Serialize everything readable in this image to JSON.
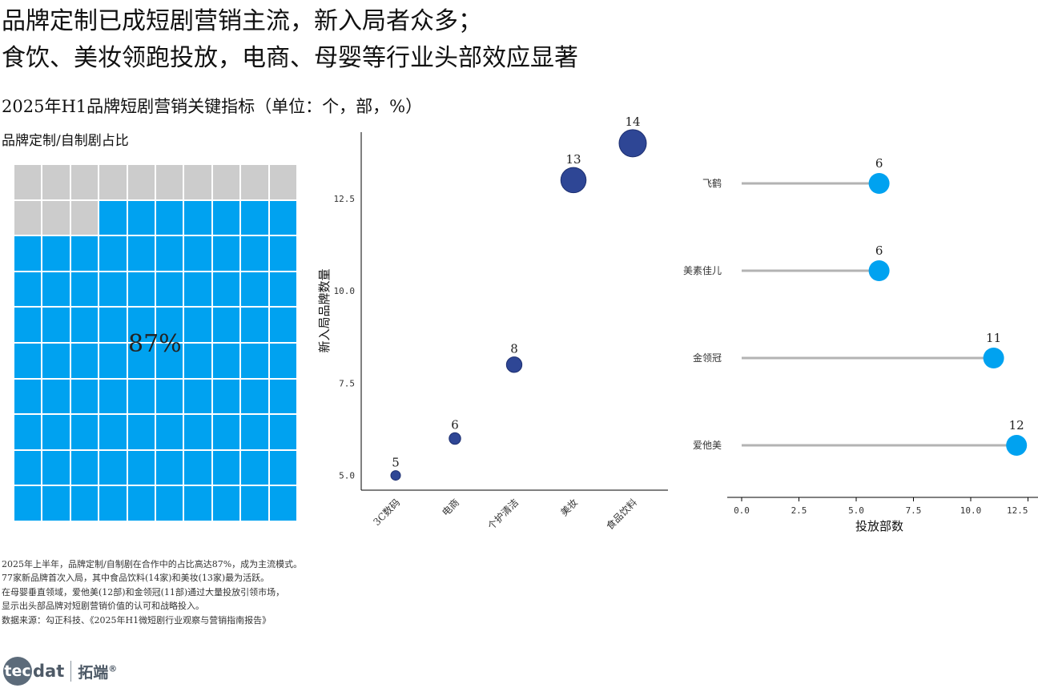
{
  "headline": {
    "line1": "品牌定制已成短剧营销主流，新入局者众多；",
    "line2": "食饮、美妆领跑投放，电商、母婴等行业头部效应显著"
  },
  "subtitle": "2025年H1品牌短剧营销关键指标（单位：个，部，%）",
  "chart_data": [
    {
      "type": "waffle",
      "title": "品牌定制/自制剧占比",
      "value": 87,
      "label": "87%",
      "grid": {
        "rows": 10,
        "cols": 10
      },
      "colors": {
        "filled": "#00a2f0",
        "empty": "#cccccc"
      }
    },
    {
      "type": "scatter",
      "title": "",
      "categories": [
        "3C数码",
        "电商",
        "个护清洁",
        "美妆",
        "食品饮料"
      ],
      "values": [
        5,
        6,
        8,
        13,
        14
      ],
      "data_labels": [
        "5",
        "6",
        "8",
        "13",
        "14"
      ],
      "xlabel": "",
      "ylabel": "新入局品牌数量",
      "ylim": [
        4.6,
        14.3
      ],
      "yticks": [
        "5.0",
        "7.5",
        "10.0",
        "12.5"
      ],
      "marker_size": "proportional to value",
      "color": "#2e4695",
      "grid": false
    },
    {
      "type": "lollipop",
      "title": "",
      "categories": [
        "飞鹤",
        "美素佳儿",
        "金领冠",
        "爱他美"
      ],
      "values": [
        6,
        6,
        11,
        12
      ],
      "data_labels": [
        "6",
        "6",
        "11",
        "12"
      ],
      "xlabel": "投放部数",
      "ylabel": "",
      "xlim": [
        -1.1,
        12.5
      ],
      "xticks": [
        "0.0",
        "2.5",
        "5.0",
        "7.5",
        "10.0",
        "12.5"
      ],
      "colors": {
        "marker": "#00a2f0",
        "stem": "#b3b3b3"
      },
      "grid": false
    }
  ],
  "footnotes": [
    "2025年上半年，品牌定制/自制剧在合作中的占比高达87%，成为主流模式。",
    "77家新品牌首次入局，其中食品饮料(14家)和美妆(13家)最为活跃。",
    "在母婴垂直领域，爱他美(12部)和金领冠(11部)通过大量投放引领市场，",
    "显示出头部品牌对短剧营销价值的认可和战略投入。",
    "数据来源：勾正科技、《2025年H1微短剧行业观察与营销指南报告》"
  ],
  "logo": {
    "mark": "tec",
    "rest": "dat",
    "cn": "拓端",
    "reg": "®"
  }
}
